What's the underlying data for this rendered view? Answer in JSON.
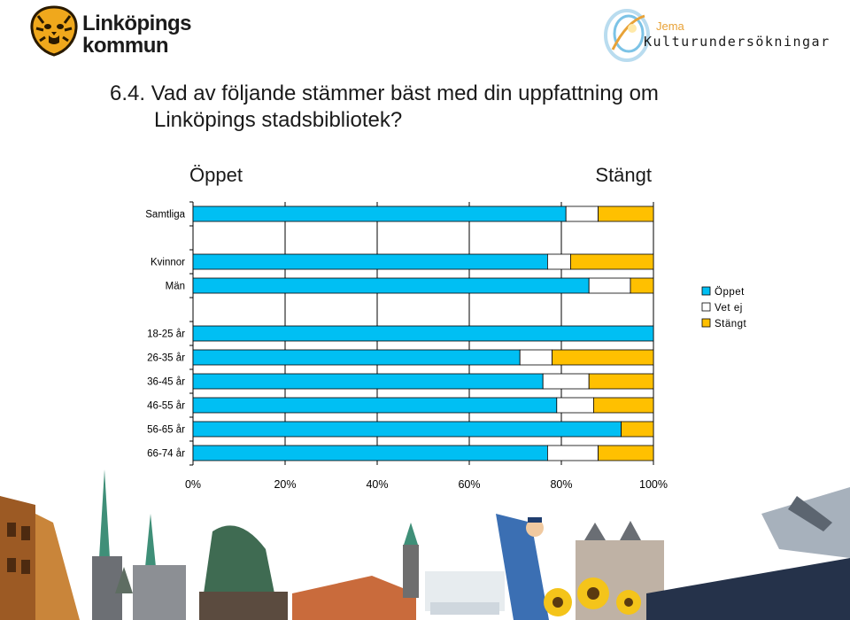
{
  "header": {
    "municipality_name": [
      "Linköpings",
      "kommun"
    ],
    "brand_small": "Jema",
    "brand_big": "Kulturundersökningar"
  },
  "question": {
    "number": "6.4.",
    "line1": "Vad av följande stämmer bäst med din uppfattning om",
    "line2": "Linköpings stadsbibliotek?"
  },
  "chart_data": {
    "type": "bar",
    "orientation": "horizontal",
    "stacked": true,
    "title": "",
    "top_labels": {
      "left": "Öppet",
      "right": "Stängt"
    },
    "categories": [
      "Samtliga",
      "Kvinnor",
      "Män",
      "18-25 år",
      "26-35 år",
      "36-45 år",
      "46-55 år",
      "56-65 år",
      "66-74 år"
    ],
    "series": [
      {
        "name": "Öppet",
        "color": "#00bff3",
        "values": [
          81,
          77,
          86,
          100,
          71,
          76,
          79,
          93,
          77
        ]
      },
      {
        "name": "Vet ej",
        "color": "#ffffff",
        "values": [
          7,
          5,
          9,
          0,
          7,
          10,
          8,
          0,
          11
        ]
      },
      {
        "name": "Stängt",
        "color": "#ffc000",
        "values": [
          12,
          18,
          5,
          0,
          22,
          14,
          13,
          7,
          12
        ]
      }
    ],
    "xlim": [
      0,
      100
    ],
    "x_ticks": [
      "0%",
      "20%",
      "40%",
      "60%",
      "80%",
      "100%"
    ],
    "grid": true,
    "legend_position": "right"
  }
}
